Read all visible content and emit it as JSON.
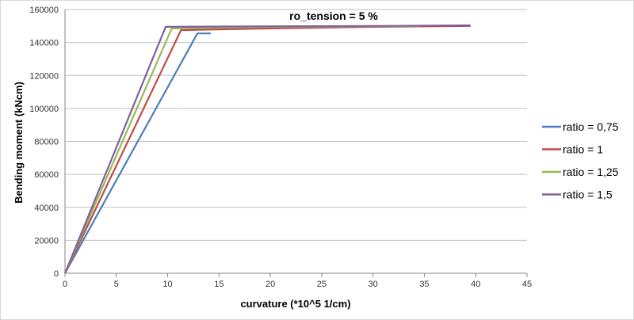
{
  "chart_data": {
    "type": "line",
    "title": "ro_tension = 5 %",
    "xlabel": "curvature (*10^5 1/cm)",
    "ylabel": "Bending moment (kNcm)",
    "xlim": [
      0,
      45
    ],
    "ylim": [
      0,
      160000
    ],
    "xticks": [
      0,
      5,
      10,
      15,
      20,
      25,
      30,
      35,
      40,
      45
    ],
    "yticks": [
      0,
      20000,
      40000,
      60000,
      80000,
      100000,
      120000,
      140000,
      160000
    ],
    "grid": true,
    "legend_position": "right",
    "series": [
      {
        "name": "ratio = 0,75",
        "color": "#4a7ebb",
        "x": [
          0,
          12.9,
          14.2
        ],
        "y": [
          0,
          145500,
          145500
        ]
      },
      {
        "name": "ratio = 1",
        "color": "#be4b48",
        "x": [
          0,
          11.3,
          20,
          30,
          39.5
        ],
        "y": [
          0,
          147500,
          148500,
          149500,
          150000
        ]
      },
      {
        "name": "ratio = 1,25",
        "color": "#98b954",
        "x": [
          0,
          10.4,
          20,
          30,
          34.5
        ],
        "y": [
          0,
          148500,
          149500,
          149800,
          150000
        ]
      },
      {
        "name": "ratio = 1,5",
        "color": "#7d60a0",
        "x": [
          0,
          9.8,
          20,
          30,
          39.5
        ],
        "y": [
          0,
          149500,
          149800,
          150000,
          150400
        ]
      }
    ]
  }
}
